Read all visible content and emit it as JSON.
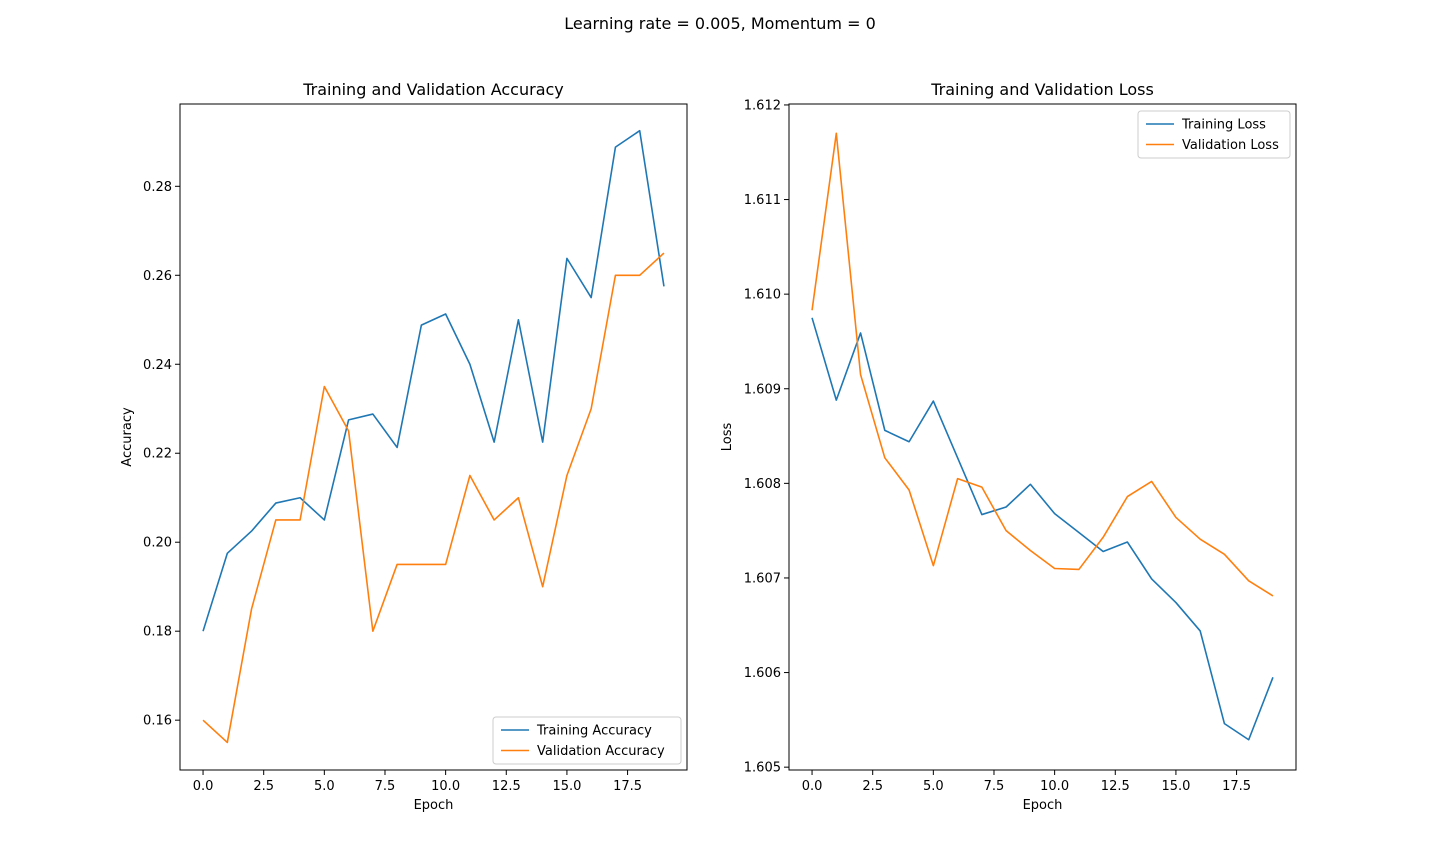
{
  "figure": {
    "suptitle": "Learning rate = 0.005, Momentum = 0"
  },
  "colors": {
    "training": "#1f77b4",
    "validation": "#ff7f0e"
  },
  "chart_data": [
    {
      "type": "line",
      "title": "Training and Validation Accuracy",
      "xlabel": "Epoch",
      "ylabel": "Accuracy",
      "xlim": [
        -0.95,
        19.95
      ],
      "ylim": [
        0.1488,
        0.2985
      ],
      "xticks": [
        0.0,
        2.5,
        5.0,
        7.5,
        10.0,
        12.5,
        15.0,
        17.5
      ],
      "xtick_labels": [
        "0.0",
        "2.5",
        "5.0",
        "7.5",
        "10.0",
        "12.5",
        "15.0",
        "17.5"
      ],
      "yticks": [
        0.16,
        0.18,
        0.2,
        0.22,
        0.24,
        0.26,
        0.28
      ],
      "ytick_labels": [
        "0.16",
        "0.18",
        "0.20",
        "0.22",
        "0.24",
        "0.26",
        "0.28"
      ],
      "legend_position": "lower-right",
      "x": [
        0,
        1,
        2,
        3,
        4,
        5,
        6,
        7,
        8,
        9,
        10,
        11,
        12,
        13,
        14,
        15,
        16,
        17,
        18,
        19
      ],
      "series": [
        {
          "name": "Training Accuracy",
          "color": "#1f77b4",
          "values": [
            0.18,
            0.1975,
            0.2025,
            0.2088,
            0.21,
            0.205,
            0.2275,
            0.2288,
            0.2213,
            0.2488,
            0.2513,
            0.24,
            0.2225,
            0.25,
            0.2225,
            0.2638,
            0.255,
            0.2888,
            0.2925,
            0.2575
          ]
        },
        {
          "name": "Validation Accuracy",
          "color": "#ff7f0e",
          "values": [
            0.16,
            0.155,
            0.185,
            0.205,
            0.205,
            0.235,
            0.225,
            0.18,
            0.195,
            0.195,
            0.195,
            0.215,
            0.205,
            0.21,
            0.19,
            0.215,
            0.23,
            0.26,
            0.26,
            0.265
          ]
        }
      ]
    },
    {
      "type": "line",
      "title": "Training and Validation Loss",
      "xlabel": "Epoch",
      "ylabel": "Loss",
      "xlim": [
        -0.95,
        19.95
      ],
      "ylim": [
        1.60497,
        1.61201
      ],
      "xticks": [
        0.0,
        2.5,
        5.0,
        7.5,
        10.0,
        12.5,
        15.0,
        17.5
      ],
      "xtick_labels": [
        "0.0",
        "2.5",
        "5.0",
        "7.5",
        "10.0",
        "12.5",
        "15.0",
        "17.5"
      ],
      "yticks": [
        1.605,
        1.606,
        1.607,
        1.608,
        1.609,
        1.61,
        1.611,
        1.612
      ],
      "ytick_labels": [
        "1.605",
        "1.606",
        "1.607",
        "1.608",
        "1.609",
        "1.610",
        "1.611",
        "1.612"
      ],
      "legend_position": "upper-right",
      "x": [
        0,
        1,
        2,
        3,
        4,
        5,
        6,
        7,
        8,
        9,
        10,
        11,
        12,
        13,
        14,
        15,
        16,
        17,
        18,
        19
      ],
      "series": [
        {
          "name": "Training Loss",
          "color": "#1f77b4",
          "values": [
            1.60975,
            1.60888,
            1.60959,
            1.60856,
            1.60844,
            1.60887,
            1.60827,
            1.60767,
            1.60775,
            1.60799,
            1.60768,
            1.60748,
            1.60728,
            1.60738,
            1.60699,
            1.60674,
            1.60644,
            1.60546,
            1.60529,
            1.60595
          ]
        },
        {
          "name": "Validation Loss",
          "color": "#ff7f0e",
          "values": [
            1.60983,
            1.6117,
            1.60915,
            1.60827,
            1.60793,
            1.60713,
            1.60805,
            1.60796,
            1.6075,
            1.60729,
            1.6071,
            1.60709,
            1.60743,
            1.60786,
            1.60802,
            1.60764,
            1.60741,
            1.60725,
            1.60697,
            1.60681
          ]
        }
      ]
    }
  ]
}
